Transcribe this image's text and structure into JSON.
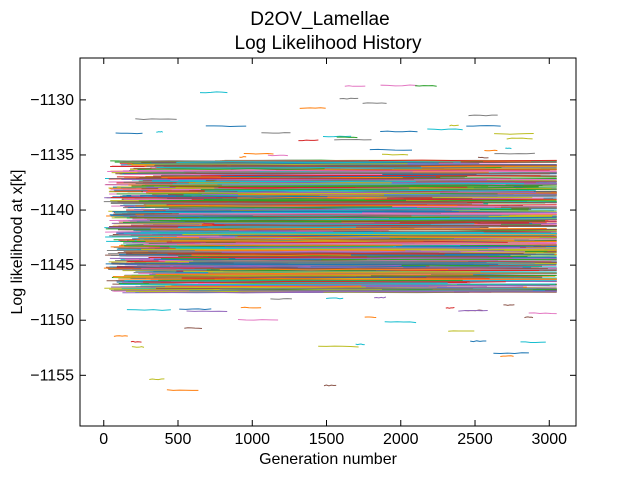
{
  "chart_data": {
    "type": "line",
    "title": "D2OV_Lamellae",
    "subtitle": "Log Likelihood History",
    "xlabel": "Generation number",
    "ylabel": "Log likelihood at x[k]",
    "xlim": [
      -160,
      3180
    ],
    "ylim": [
      -1159.6,
      -1126.2
    ],
    "xticks": [
      {
        "value": 0,
        "label": "0"
      },
      {
        "value": 500,
        "label": "500"
      },
      {
        "value": 1000,
        "label": "1000"
      },
      {
        "value": 1500,
        "label": "1500"
      },
      {
        "value": 2000,
        "label": "2000"
      },
      {
        "value": 2500,
        "label": "2500"
      },
      {
        "value": 3000,
        "label": "3000"
      }
    ],
    "yticks": [
      {
        "value": -1130,
        "label": "−1130"
      },
      {
        "value": -1135,
        "label": "−1135"
      },
      {
        "value": -1140,
        "label": "−1140"
      },
      {
        "value": -1145,
        "label": "−1145"
      },
      {
        "value": -1150,
        "label": "−1150"
      },
      {
        "value": -1155,
        "label": "−1155"
      }
    ],
    "x_range_data": [
      0,
      3050
    ],
    "series_count_estimate": 1200,
    "value_distribution": {
      "dense_band": [
        -1147.5,
        -1135.5
      ],
      "sparse_range": [
        -1158,
        -1127.5
      ]
    },
    "series_colors": [
      "#1f77b4",
      "#ff7f0e",
      "#2ca02c",
      "#d62728",
      "#9467bd",
      "#8c564b",
      "#e377c2",
      "#7f7f7f",
      "#bcbd22",
      "#17becf"
    ],
    "grid": false,
    "legend": "none"
  }
}
